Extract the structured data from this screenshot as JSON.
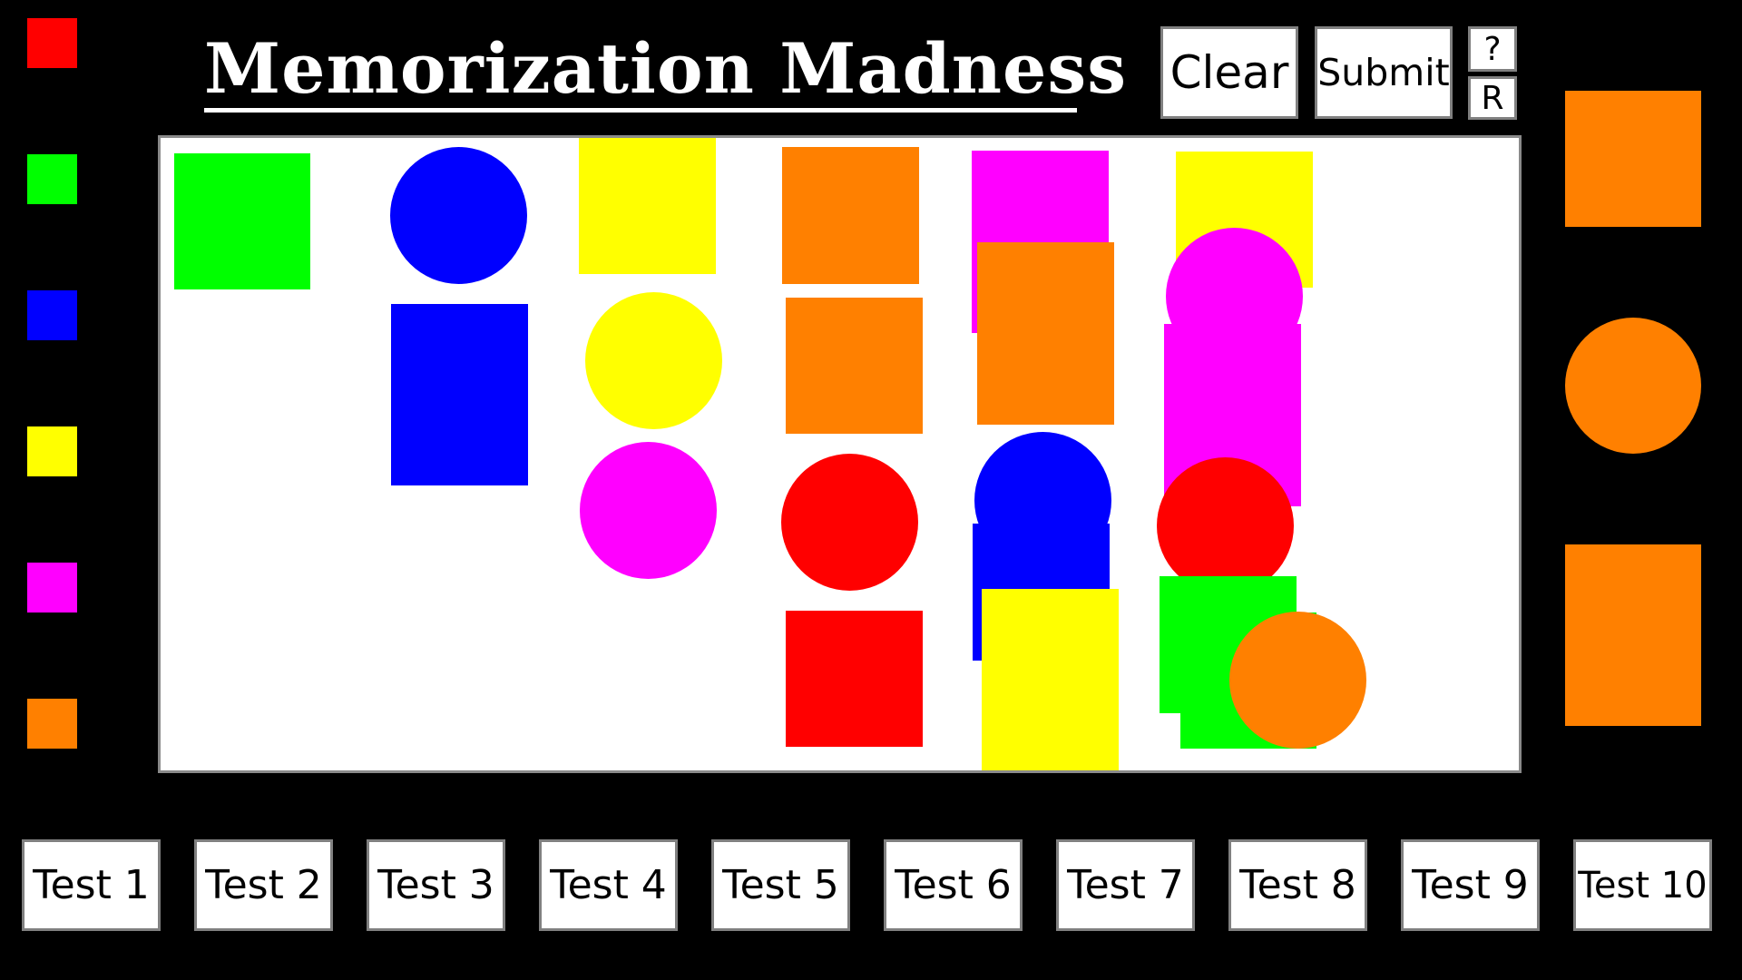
{
  "title": "Memorization Madness",
  "buttons": {
    "clear": "Clear",
    "submit": "Submit",
    "help": "?",
    "reset": "R"
  },
  "palette": [
    {
      "name": "red",
      "color": "#ff0000"
    },
    {
      "name": "green",
      "color": "#00ff00"
    },
    {
      "name": "blue",
      "color": "#0000ff"
    },
    {
      "name": "yellow",
      "color": "#ffff00"
    },
    {
      "name": "magenta",
      "color": "#ff00ff"
    },
    {
      "name": "orange",
      "color": "#ff8000"
    }
  ],
  "targets": [
    {
      "shape": "square",
      "color": "#ff8000"
    },
    {
      "shape": "circle",
      "color": "#ff8000"
    },
    {
      "shape": "rectangle",
      "color": "#ff8000"
    }
  ],
  "tests": [
    "Test 1",
    "Test 2",
    "Test 3",
    "Test 4",
    "Test 5",
    "Test 6",
    "Test 7",
    "Test 8",
    "Test 9",
    "Test 10"
  ],
  "board_shapes": [
    {
      "shape": "square",
      "color": "#00ff00"
    },
    {
      "shape": "circle",
      "color": "#0000ff"
    },
    {
      "shape": "rectangle",
      "color": "#0000ff"
    },
    {
      "shape": "square",
      "color": "#ffff00"
    },
    {
      "shape": "circle",
      "color": "#ffff00"
    },
    {
      "shape": "circle",
      "color": "#ff00ff"
    },
    {
      "shape": "square",
      "color": "#ff8000"
    },
    {
      "shape": "square",
      "color": "#ff8000"
    },
    {
      "shape": "circle",
      "color": "#ff0000"
    },
    {
      "shape": "square",
      "color": "#ff0000"
    },
    {
      "shape": "rectangle",
      "color": "#ff00ff"
    },
    {
      "shape": "rectangle",
      "color": "#ff8000"
    },
    {
      "shape": "circle",
      "color": "#0000ff"
    },
    {
      "shape": "square",
      "color": "#0000ff"
    },
    {
      "shape": "rectangle",
      "color": "#ffff00"
    },
    {
      "shape": "rectangle",
      "color": "#ffff00"
    },
    {
      "shape": "circle",
      "color": "#ff00ff"
    },
    {
      "shape": "rectangle",
      "color": "#ff00ff"
    },
    {
      "shape": "circle",
      "color": "#ff0000"
    },
    {
      "shape": "square",
      "color": "#00ff00"
    },
    {
      "shape": "square",
      "color": "#00ff00"
    },
    {
      "shape": "circle",
      "color": "#ff8000"
    }
  ]
}
